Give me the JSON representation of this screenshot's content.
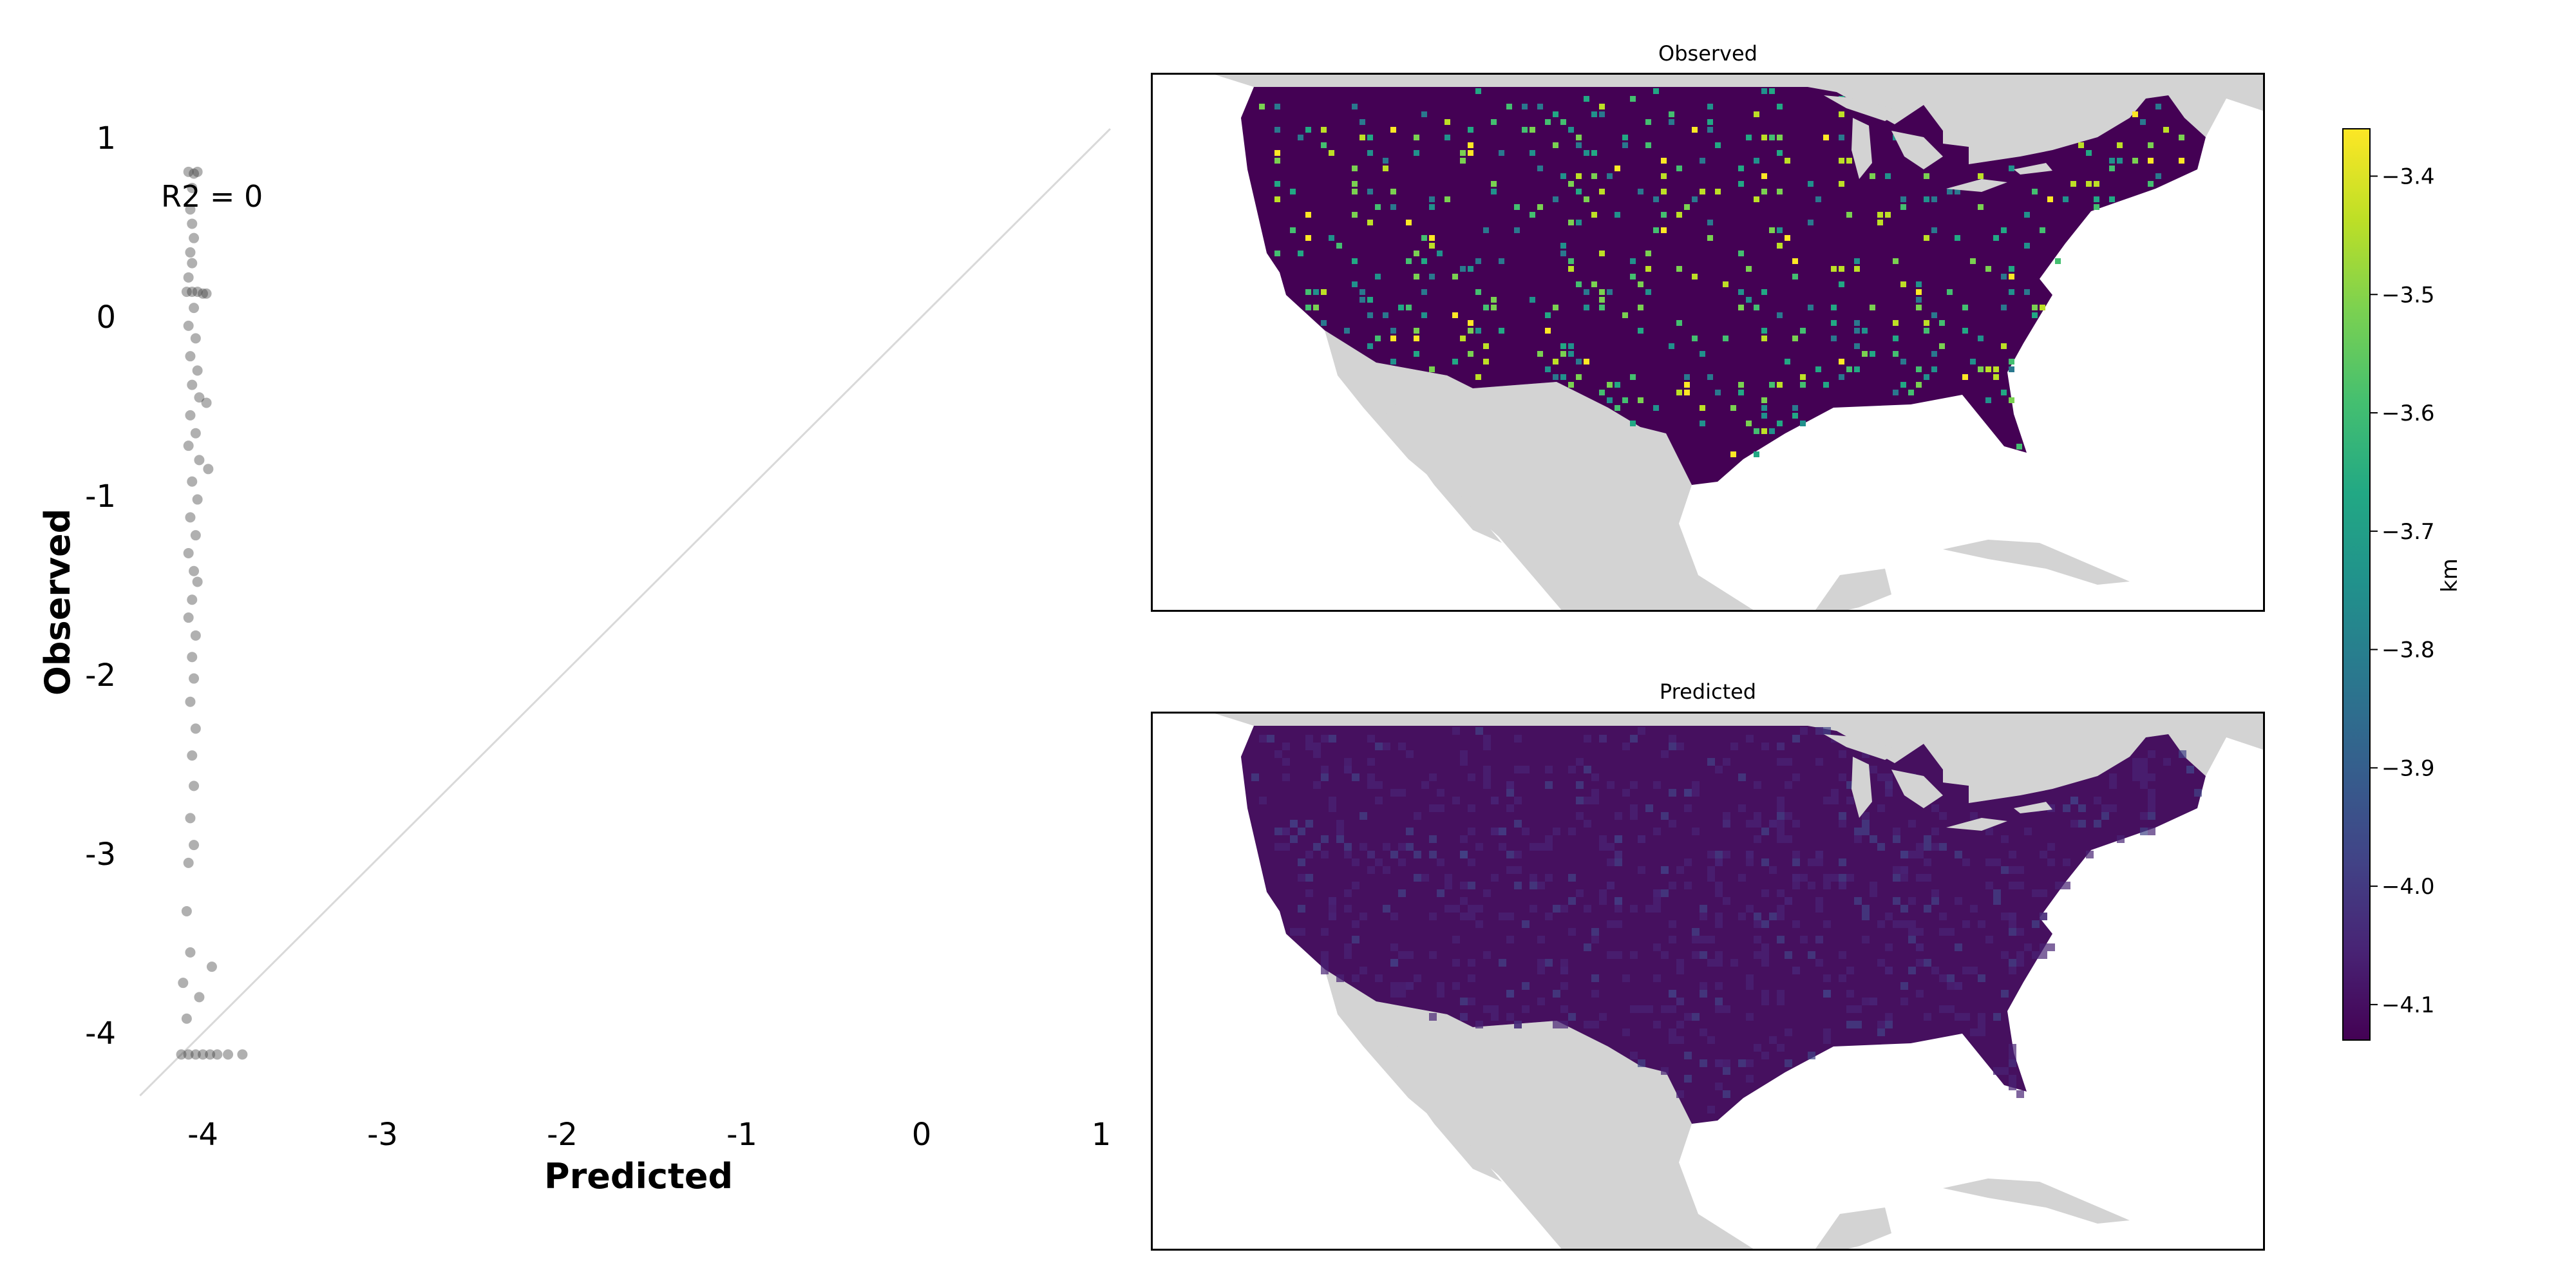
{
  "chart_data": [
    {
      "type": "scatter",
      "title": "",
      "xlabel": "Predicted",
      "ylabel": "Observed",
      "xlim": [
        -4.35,
        1.05
      ],
      "ylim": [
        -4.35,
        1.2
      ],
      "x_ticks": [
        -4,
        -3,
        -2,
        -1,
        0,
        1
      ],
      "y_ticks": [
        1,
        0,
        -1,
        -2,
        -3,
        -4
      ],
      "x_tick_labels": [
        "-4",
        "-3",
        "-2",
        "-1",
        "0",
        "1"
      ],
      "y_tick_labels": [
        "1",
        "0",
        "-1",
        "-2",
        "-3",
        "-4"
      ],
      "annotation": "R2 = 0",
      "reference_line": "y = x",
      "grid": false,
      "point_color": "#3a3a3a",
      "line_color": "#d9d9d9",
      "points": [
        {
          "x": -4.08,
          "y": 0.81
        },
        {
          "x": -4.05,
          "y": 0.8
        },
        {
          "x": -4.03,
          "y": 0.81
        },
        {
          "x": -4.06,
          "y": 0.72
        },
        {
          "x": -4.07,
          "y": 0.6
        },
        {
          "x": -4.06,
          "y": 0.52
        },
        {
          "x": -4.05,
          "y": 0.44
        },
        {
          "x": -4.07,
          "y": 0.36
        },
        {
          "x": -4.06,
          "y": 0.3
        },
        {
          "x": -4.08,
          "y": 0.22
        },
        {
          "x": -4.09,
          "y": 0.14
        },
        {
          "x": -4.06,
          "y": 0.14
        },
        {
          "x": -4.03,
          "y": 0.14
        },
        {
          "x": -4.0,
          "y": 0.13
        },
        {
          "x": -3.98,
          "y": 0.13
        },
        {
          "x": -4.05,
          "y": 0.05
        },
        {
          "x": -4.08,
          "y": -0.05
        },
        {
          "x": -4.04,
          "y": -0.12
        },
        {
          "x": -4.07,
          "y": -0.22
        },
        {
          "x": -4.03,
          "y": -0.3
        },
        {
          "x": -4.06,
          "y": -0.38
        },
        {
          "x": -4.02,
          "y": -0.45
        },
        {
          "x": -3.98,
          "y": -0.48
        },
        {
          "x": -4.07,
          "y": -0.55
        },
        {
          "x": -4.04,
          "y": -0.65
        },
        {
          "x": -4.08,
          "y": -0.72
        },
        {
          "x": -4.02,
          "y": -0.8
        },
        {
          "x": -3.97,
          "y": -0.85
        },
        {
          "x": -4.06,
          "y": -0.92
        },
        {
          "x": -4.03,
          "y": -1.02
        },
        {
          "x": -4.07,
          "y": -1.12
        },
        {
          "x": -4.04,
          "y": -1.22
        },
        {
          "x": -4.08,
          "y": -1.32
        },
        {
          "x": -4.05,
          "y": -1.42
        },
        {
          "x": -4.03,
          "y": -1.48
        },
        {
          "x": -4.06,
          "y": -1.58
        },
        {
          "x": -4.08,
          "y": -1.68
        },
        {
          "x": -4.04,
          "y": -1.78
        },
        {
          "x": -4.06,
          "y": -1.9
        },
        {
          "x": -4.05,
          "y": -2.02
        },
        {
          "x": -4.07,
          "y": -2.15
        },
        {
          "x": -4.04,
          "y": -2.3
        },
        {
          "x": -4.06,
          "y": -2.45
        },
        {
          "x": -4.05,
          "y": -2.62
        },
        {
          "x": -4.07,
          "y": -2.8
        },
        {
          "x": -4.05,
          "y": -2.95
        },
        {
          "x": -4.08,
          "y": -3.05
        },
        {
          "x": -4.09,
          "y": -3.32
        },
        {
          "x": -4.07,
          "y": -3.55
        },
        {
          "x": -3.95,
          "y": -3.63
        },
        {
          "x": -4.11,
          "y": -3.72
        },
        {
          "x": -4.02,
          "y": -3.8
        },
        {
          "x": -4.09,
          "y": -3.92
        },
        {
          "x": -4.12,
          "y": -4.12
        },
        {
          "x": -4.08,
          "y": -4.12
        },
        {
          "x": -4.04,
          "y": -4.12
        },
        {
          "x": -4.0,
          "y": -4.12
        },
        {
          "x": -3.96,
          "y": -4.12
        },
        {
          "x": -3.92,
          "y": -4.12
        },
        {
          "x": -3.86,
          "y": -4.12
        },
        {
          "x": -3.78,
          "y": -4.12
        }
      ]
    },
    {
      "type": "heatmap",
      "title": "Observed",
      "colormap": "viridis",
      "background_value": -4.12,
      "land_color": "#d3d3d3"
    },
    {
      "type": "heatmap",
      "title": "Predicted",
      "colormap": "viridis",
      "background_value": -4.1,
      "land_color": "#d3d3d3"
    }
  ],
  "colorbar": {
    "label": "km",
    "range": [
      -4.13,
      -3.36
    ],
    "ticks": [
      -3.4,
      -3.5,
      -3.6,
      -3.7,
      -3.8,
      -3.9,
      -4.0,
      -4.1
    ],
    "tick_labels": [
      "−3.4",
      "−3.5",
      "−3.6",
      "−3.7",
      "−3.8",
      "−3.9",
      "−4.0",
      "−4.1"
    ]
  }
}
